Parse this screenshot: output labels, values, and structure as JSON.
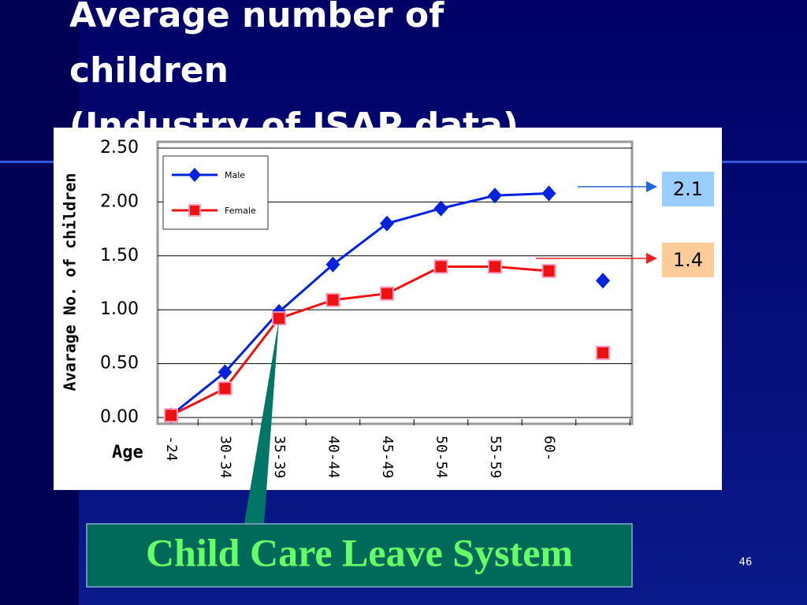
{
  "title_lines": [
    "Average number of",
    "children",
    "(Industry of JSAP data)"
  ],
  "chart_data": {
    "type": "line",
    "ylabel": "Avarage No. of children",
    "xlabel": "Age",
    "categories": [
      "-24",
      "30-34",
      "35-39",
      "40-44",
      "45-49",
      "50-54",
      "55-59",
      "60-",
      null
    ],
    "series": [
      {
        "name": "Male",
        "color": "#0022dd",
        "marker": "diamond",
        "values": [
          0.02,
          0.42,
          0.98,
          1.42,
          1.8,
          1.94,
          2.06,
          2.08,
          1.27
        ]
      },
      {
        "name": "Female",
        "color": "#ee1111",
        "marker": "square",
        "values": [
          0.02,
          0.27,
          0.92,
          1.09,
          1.15,
          1.4,
          1.4,
          1.36,
          0.6
        ]
      }
    ],
    "ylim": [
      0,
      2.5
    ],
    "yticks": [
      {
        "value": 0,
        "label": "0.00"
      },
      {
        "value": 0.5,
        "label": "0.50"
      },
      {
        "value": 1,
        "label": "1.00"
      },
      {
        "value": 1.5,
        "label": "1.50"
      },
      {
        "value": 2,
        "label": "2.00"
      },
      {
        "value": 2.5,
        "label": "2.50"
      }
    ],
    "grid": true,
    "legend": "top-left"
  },
  "annotations": {
    "male_value": "2.1",
    "female_value": "1.4",
    "callout": "Child Care Leave System"
  },
  "page_number": "46"
}
